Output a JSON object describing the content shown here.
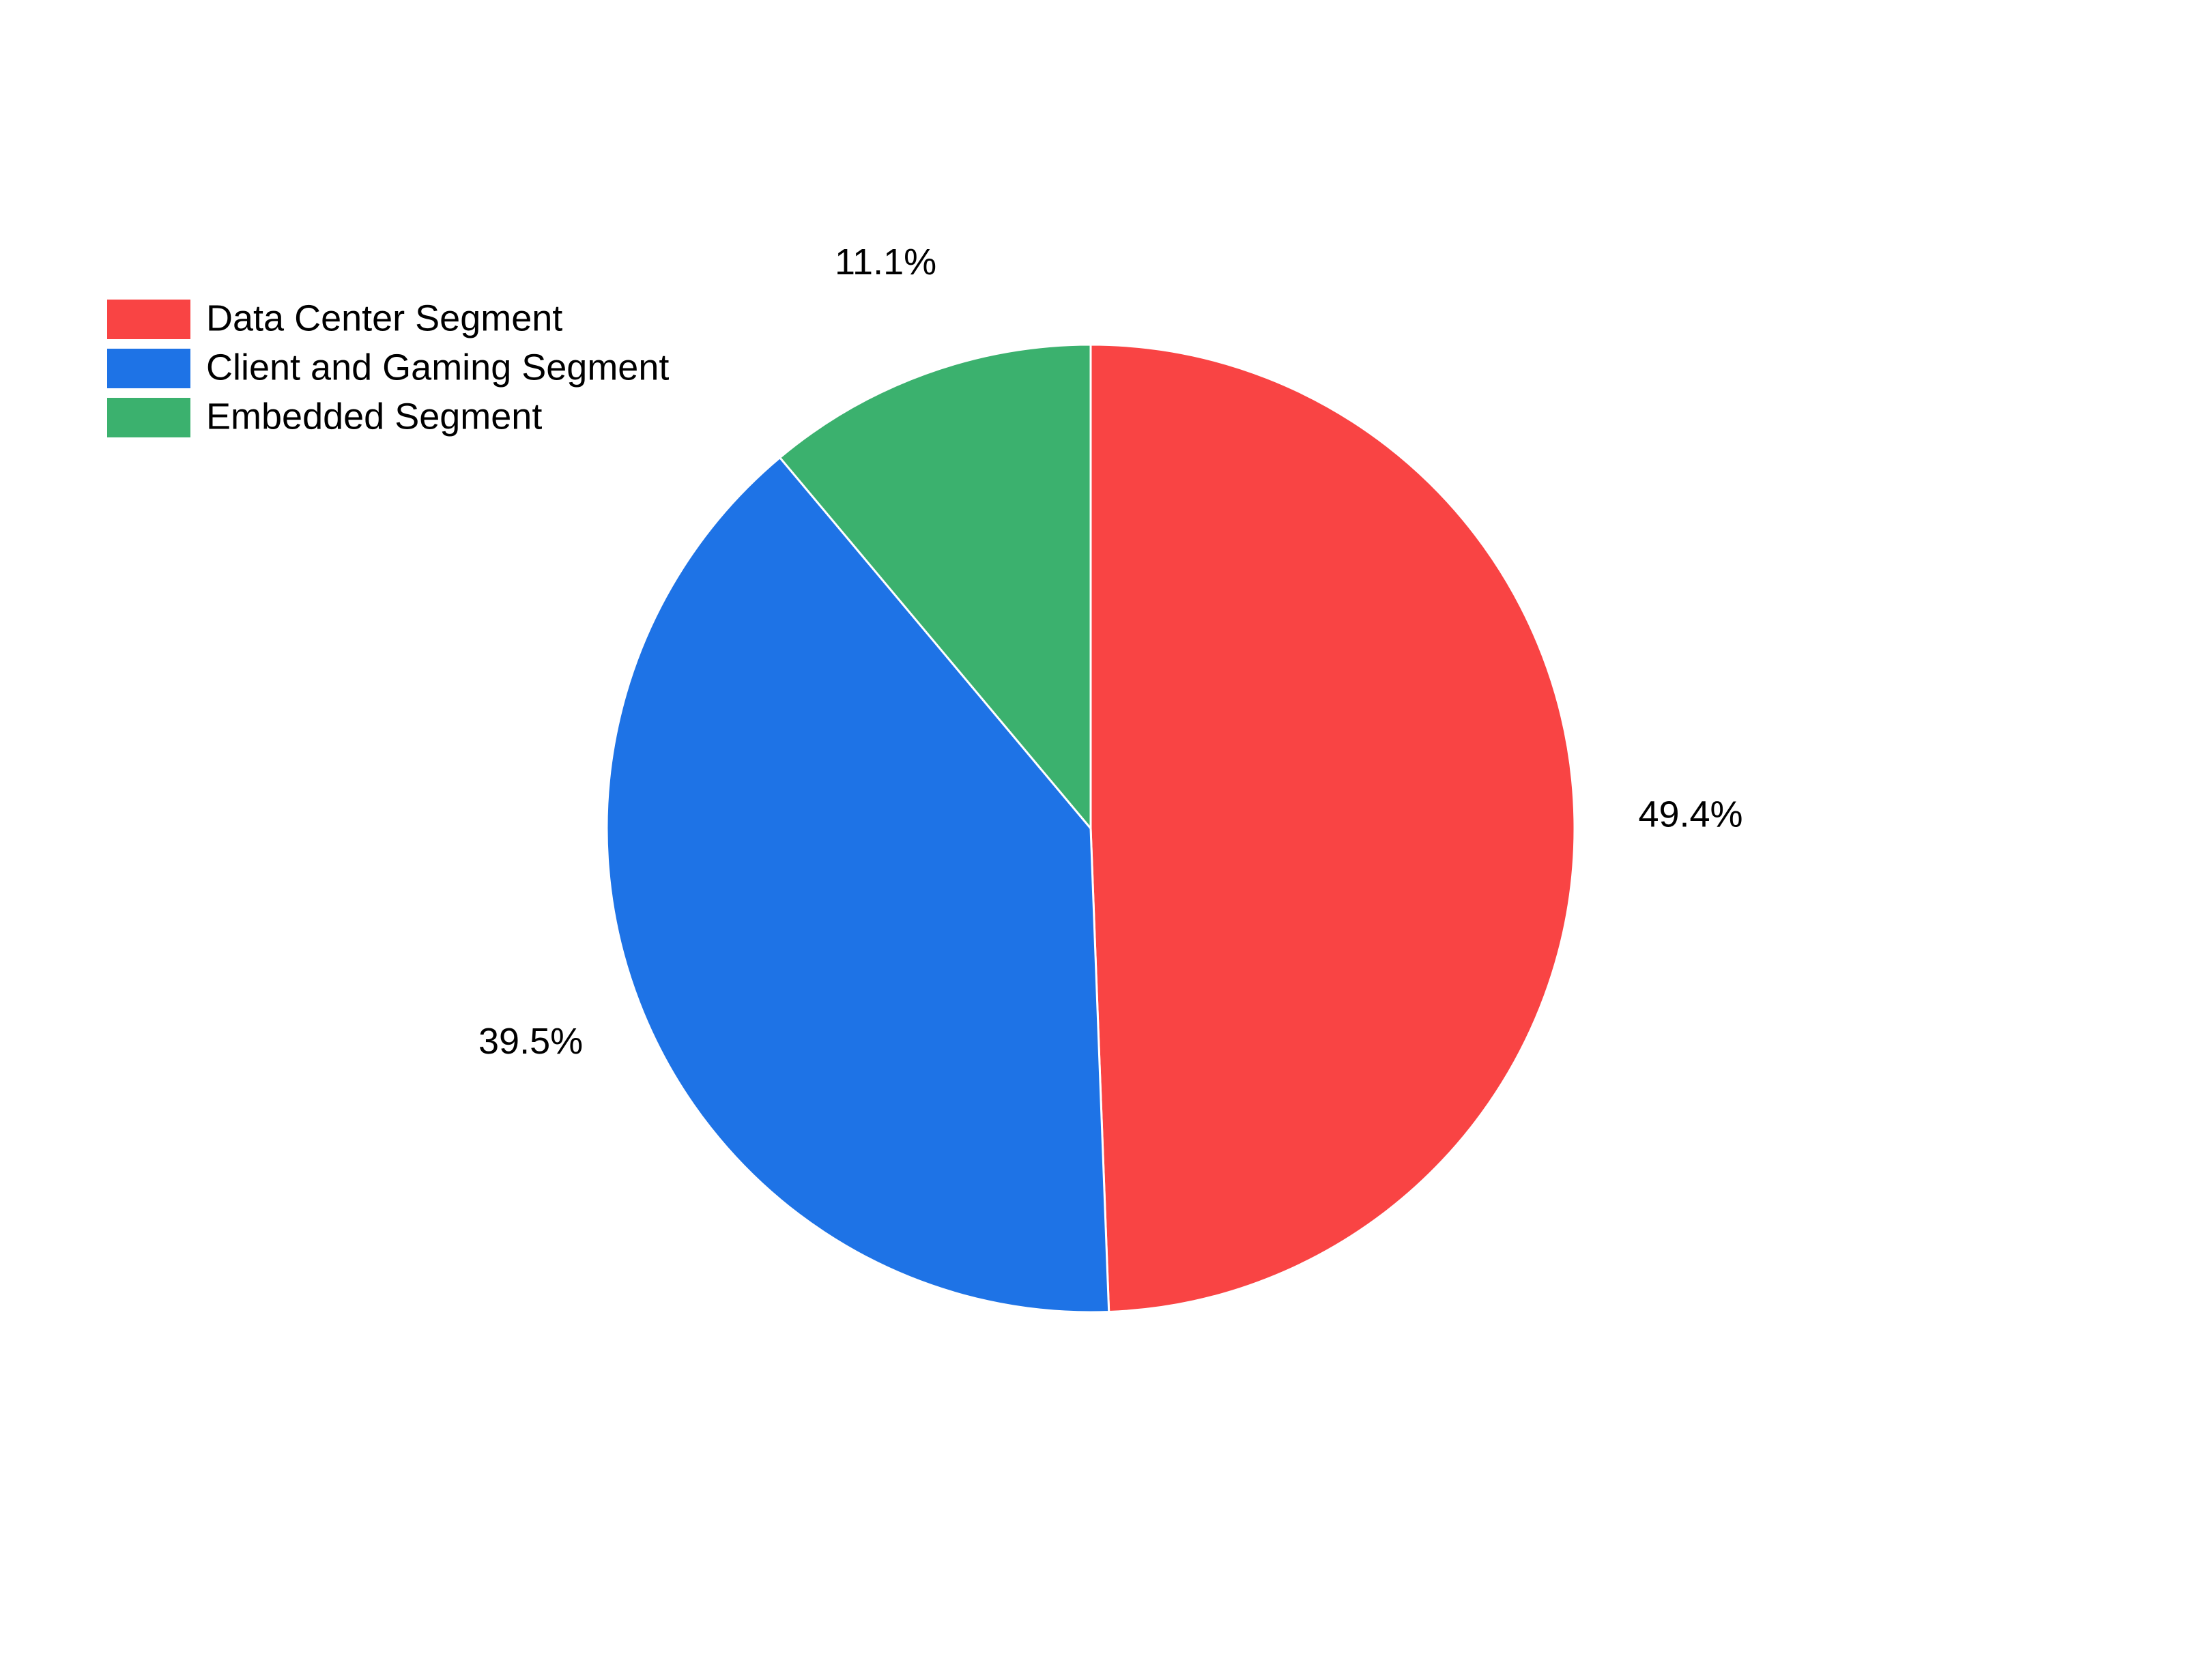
{
  "chart_data": {
    "type": "pie",
    "categories": [
      "Data Center Segment",
      "Client and Gaming Segment",
      "Embedded Segment"
    ],
    "values": [
      49.4,
      39.5,
      11.1
    ],
    "value_labels": [
      "49.4%",
      "39.5%",
      "11.1%"
    ],
    "colors": [
      "#f94444",
      "#1e73e6",
      "#3bb16e"
    ],
    "legend": "upper left"
  }
}
